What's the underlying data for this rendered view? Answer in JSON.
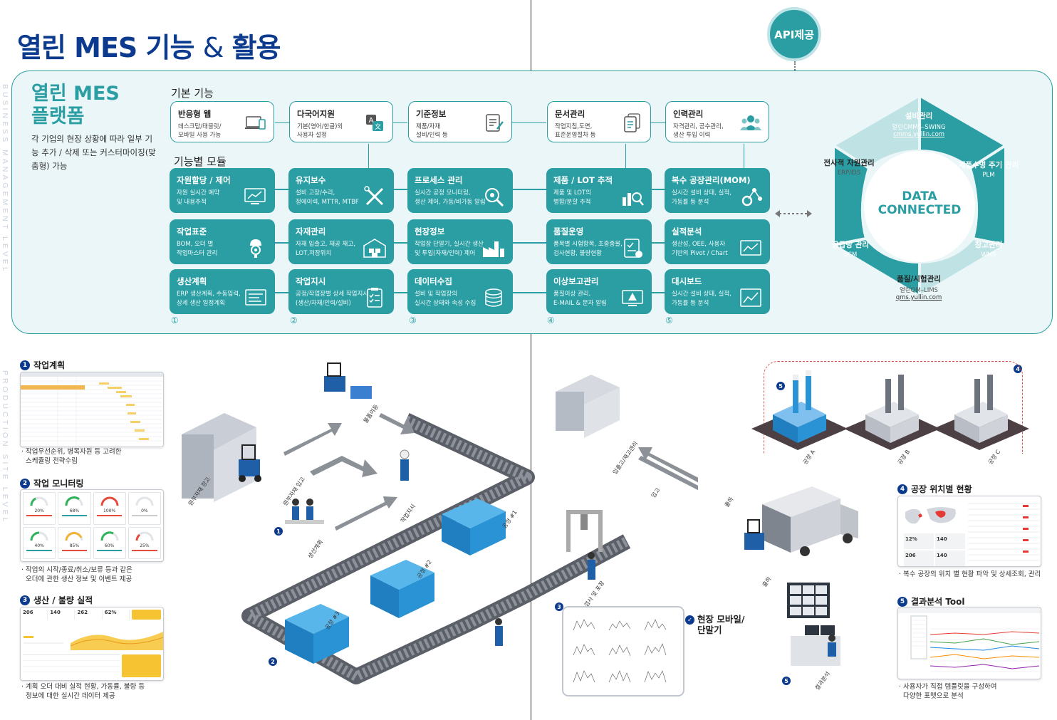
{
  "page": {
    "title_part1": "열린 MES 기능",
    "title_amp": "&",
    "title_part2": "활용",
    "side_top": "BUSINESS MANAGEMENT LEVEL",
    "side_bottom": "PRODUCTION SITE LEVEL"
  },
  "api": {
    "label": "API제공"
  },
  "brand": {
    "title_line1": "열린 MES",
    "title_line2": "플랫폼",
    "desc": "각 기업의 현장 상황에 따라 일부 기능 추가 / 삭제 또는 커스터마이징(맞춤형) 가능"
  },
  "sections": {
    "basic": "기본 기능",
    "modules": "기능별 모듈"
  },
  "basic_functions": [
    {
      "title": "반응형 웹",
      "desc1": "데스크탑/태블릿/",
      "desc2": "모바일 사용 가능",
      "icon": "devices-icon"
    },
    {
      "title": "다국어지원",
      "desc1": "기본(영어/한글)외",
      "desc2": "사용자 설정",
      "icon": "language-icon"
    },
    {
      "title": "기준정보",
      "desc1": "제품/자재",
      "desc2": "설비/인력 등",
      "icon": "document-icon"
    },
    {
      "title": "문서관리",
      "desc1": "작업지침,도면,",
      "desc2": "표준운영절차 등",
      "icon": "document-icon"
    },
    {
      "title": "인력관리",
      "desc1": "자격관리, 공수관리,",
      "desc2": "생산 투입 이력",
      "icon": "people-icon"
    }
  ],
  "modules": [
    [
      {
        "title": "자원할당 / 제어",
        "desc1": "자원 실시간 예약",
        "desc2": "및 내용추적",
        "icon": "monitor-chart-icon"
      },
      {
        "title": "작업표준",
        "desc1": "BOM, 오더 별",
        "desc2": "작업마스터 관리",
        "icon": "worker-gear-icon"
      },
      {
        "title": "생산계획",
        "desc1": "ERP 생산계획, 수동입력,",
        "desc2": "상세 생산 일정계획",
        "icon": "schedule-icon"
      }
    ],
    [
      {
        "title": "유지보수",
        "desc1": "설비 고장/수리,",
        "desc2": "정에이력, MTTR, MTBF",
        "icon": "tools-icon"
      },
      {
        "title": "자재관리",
        "desc1": "자재 입출고, 재공 재고,",
        "desc2": "LOT,저장위치",
        "icon": "warehouse-icon"
      },
      {
        "title": "작업지시",
        "desc1": "공정/작업장별 상세 작업지시",
        "desc2": "(생산/자재/인력/설비)",
        "icon": "clipboard-icon"
      }
    ],
    [
      {
        "title": "프로세스 관리",
        "desc1": "실시간 공정 모니터링,",
        "desc2": "생산 제어, 가동/비가동 알림",
        "icon": "process-search-icon"
      },
      {
        "title": "현장정보",
        "desc1": "작업장 단말기, 실시간 생산",
        "desc2": "및 투입(자재/인력) 제어",
        "icon": "factory-icon"
      },
      {
        "title": "데이터수집",
        "desc1": "설비 및 작업장의",
        "desc2": "실시간 상태와 속성 수집",
        "icon": "database-icon"
      }
    ],
    [
      {
        "title": "제품 / LOT 추적",
        "desc1": "제품 및 LOT의",
        "desc2": "병합/분할 추적",
        "icon": "bar-search-icon"
      },
      {
        "title": "품질운영",
        "desc1": "품목별 시험항목, 초중종물,",
        "desc2": "검사현황, 불량현황",
        "icon": "quality-check-icon"
      },
      {
        "title": "이상보고관리",
        "desc1": "품질이상 관리,",
        "desc2": "E-MAIL & 문자 알림",
        "icon": "alert-monitor-icon"
      }
    ],
    [
      {
        "title": "복수 공장관리(MOM)",
        "desc1": "실시간 설비 상태, 실적,",
        "desc2": "가동률 등 분석",
        "icon": "network-gear-icon"
      },
      {
        "title": "실적분석",
        "desc1": "생산성, OEE, 사용자",
        "desc2": "기반의 Pivot / Chart",
        "icon": "line-chart-icon"
      },
      {
        "title": "대시보드",
        "desc1": "실시간 설비 상태, 실적,",
        "desc2": "가동률 등 분석",
        "icon": "dashboard-icon"
      }
    ]
  ],
  "column_numbers": [
    "①",
    "②",
    "③",
    "④",
    "⑤"
  ],
  "data_ring": {
    "center_line1": "DATA",
    "center_line2": "CONNECTED",
    "segments": [
      {
        "title": "설비관리",
        "sub": "열린CMMS–SWING",
        "link": "cmms.yullin.com"
      },
      {
        "title": "제품수명 주기 관리",
        "sub": "PLM"
      },
      {
        "title": "창고관리",
        "sub": "WMS"
      },
      {
        "title": "품질/시험관리",
        "sub": "열린QM–LIMS",
        "link": "qms.yullin.com"
      },
      {
        "title": "공급망 관리",
        "sub": "SCM"
      },
      {
        "title": "전사적 자원관리",
        "sub": "ERP/EIS"
      }
    ]
  },
  "legend_left": [
    {
      "num": "1",
      "title": "작업계획",
      "desc1": "작업우선순위, 병목자원 등 고려한",
      "desc2": "스케쥴링 전략수립"
    },
    {
      "num": "2",
      "title": "작업 모니터링",
      "desc1": "작업의 시작/종료/취소/보류 등과 같은",
      "desc2": "오더에 관한 생산 정보 및 이벤트 제공"
    },
    {
      "num": "3",
      "title": "생산 / 불량 실적",
      "desc1": "계획 오더 대비 실적 현황, 가동률, 불량 등",
      "desc2": "정보에 대한 실시간 데이터 제공"
    }
  ],
  "legend_right": [
    {
      "num": "4",
      "title": "공장 위치별 현황",
      "desc1": "복수 공장의 위치 별 현황 파악 및 상세조회, 관리",
      "desc2": ""
    },
    {
      "num": "5",
      "title": "결과분석 Tool",
      "desc1": "사용자가 직접 템플릿을 구성하여",
      "desc2": "다양한 포맷으로 분석"
    }
  ],
  "mobile": {
    "title_line1": "현장 모바일/",
    "title_line2": "단말기"
  },
  "scene_labels": {
    "warehouse": "원부자재 창고",
    "receiving": "원부자재 입고",
    "planning": "생산계획",
    "order": "작업지시",
    "shipping": "물품이동",
    "inspection": "검사 및 포장",
    "storage": "입출고/재고관리",
    "inbound": "입고",
    "outbound": "출하",
    "loading": "출하",
    "analysis": "결과분석",
    "process1": "공정 #1",
    "process2": "공정 #2",
    "process3": "공정 #3",
    "factory_a": "공장 A",
    "factory_b": "공장 B",
    "factory_c": "공장 C"
  },
  "thumb_values": {
    "mon_pct": [
      "20%",
      "68%",
      "100%",
      "0%",
      "40%",
      "85%",
      "60%",
      "25%"
    ],
    "kpi": [
      "206",
      "140",
      "262",
      "62%"
    ],
    "map_kpi": [
      "12%",
      "140",
      "206",
      "140"
    ]
  },
  "colors": {
    "teal": "#2a9ea3",
    "navy": "#0b3a8e",
    "panel_bg": "#eaf6f7",
    "ring_light": "#bfe2e4"
  }
}
